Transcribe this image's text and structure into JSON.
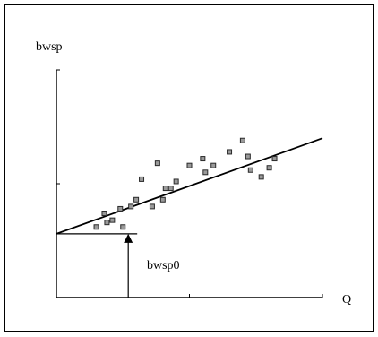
{
  "chart_data": {
    "type": "scatter",
    "xlabel": "Q",
    "ylabel": "bwsp",
    "xlim": [
      0,
      100
    ],
    "ylim": [
      0,
      100
    ],
    "x_ticks": [
      0,
      50,
      100
    ],
    "y_ticks": [
      0,
      50,
      100
    ],
    "grid": false,
    "legend": "none",
    "fit_line": {
      "intercept": 28,
      "end_x": 100,
      "end_y": 70
    },
    "annotation": {
      "text": "bwsp0",
      "x": 27,
      "y": 28
    },
    "points": [
      {
        "x": 15,
        "y": 31
      },
      {
        "x": 19,
        "y": 33
      },
      {
        "x": 21,
        "y": 34
      },
      {
        "x": 18,
        "y": 37
      },
      {
        "x": 24,
        "y": 39
      },
      {
        "x": 25,
        "y": 31
      },
      {
        "x": 28,
        "y": 40
      },
      {
        "x": 30,
        "y": 43
      },
      {
        "x": 32,
        "y": 52
      },
      {
        "x": 36,
        "y": 40
      },
      {
        "x": 38,
        "y": 59
      },
      {
        "x": 40,
        "y": 43
      },
      {
        "x": 41,
        "y": 48
      },
      {
        "x": 43,
        "y": 48
      },
      {
        "x": 45,
        "y": 51
      },
      {
        "x": 50,
        "y": 58
      },
      {
        "x": 55,
        "y": 61
      },
      {
        "x": 56,
        "y": 55
      },
      {
        "x": 59,
        "y": 58
      },
      {
        "x": 65,
        "y": 64
      },
      {
        "x": 70,
        "y": 69
      },
      {
        "x": 72,
        "y": 62
      },
      {
        "x": 73,
        "y": 56
      },
      {
        "x": 77,
        "y": 53
      },
      {
        "x": 80,
        "y": 57
      },
      {
        "x": 82,
        "y": 61
      }
    ],
    "colors": {
      "points": "#9a9a9a",
      "line": "#000000"
    }
  }
}
